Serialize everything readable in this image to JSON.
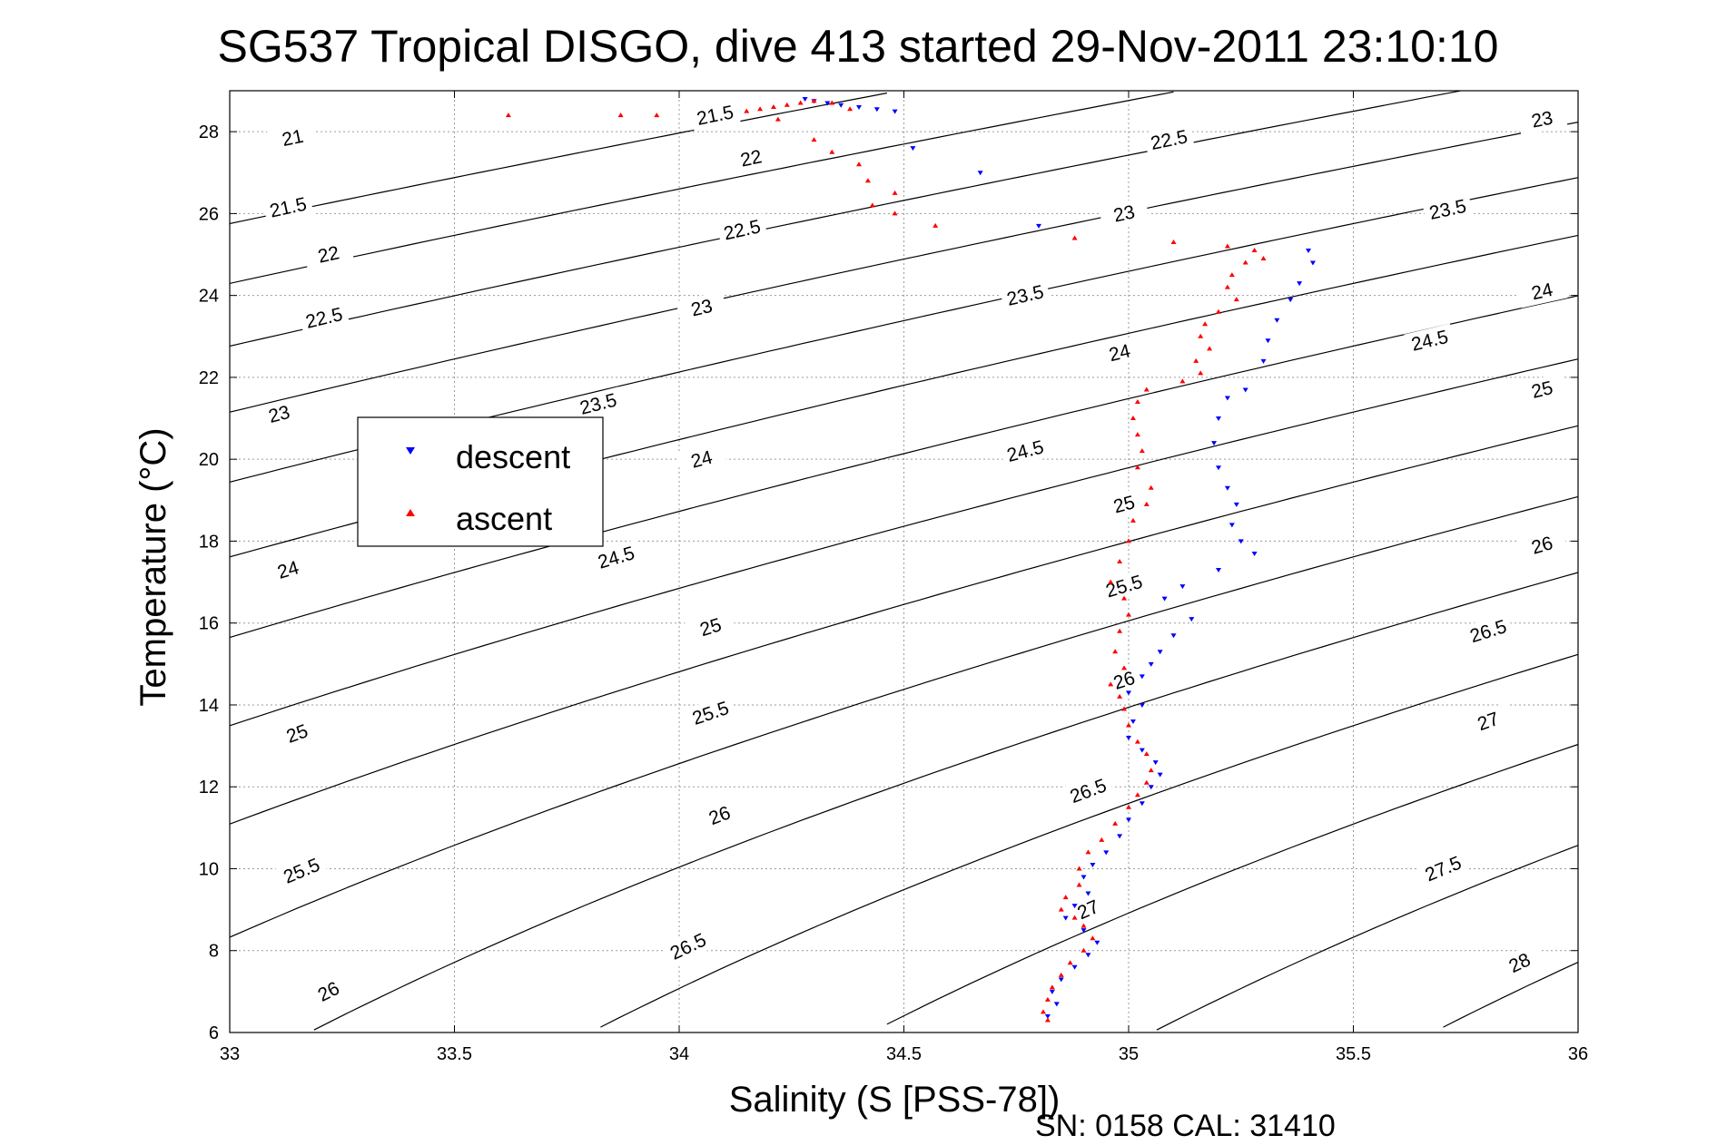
{
  "chart_data": {
    "type": "scatter",
    "title": "SG537 Tropical DISGO, dive 413 started 29-Nov-2011 23:10:10",
    "xlabel": "Salinity (S [PSS-78])",
    "ylabel": "Temperature (°C)",
    "footer": "SN: 0158  CAL: 31410",
    "xlim": [
      33,
      36
    ],
    "ylim": [
      6,
      29
    ],
    "x_ticks": [
      "33",
      "33.5",
      "34",
      "34.5",
      "35",
      "35.5",
      "36"
    ],
    "y_ticks": [
      "6",
      "8",
      "10",
      "12",
      "14",
      "16",
      "18",
      "20",
      "22",
      "24",
      "26",
      "28"
    ],
    "grid": true,
    "legend_position": "center-left",
    "series": [
      {
        "name": "descent",
        "color": "#0000ff",
        "marker": "triangle-down",
        "points": [
          [
            34.28,
            28.8
          ],
          [
            34.3,
            28.75
          ],
          [
            34.33,
            28.7
          ],
          [
            34.36,
            28.65
          ],
          [
            34.4,
            28.6
          ],
          [
            34.44,
            28.55
          ],
          [
            34.48,
            28.5
          ],
          [
            34.52,
            27.6
          ],
          [
            34.67,
            27.0
          ],
          [
            34.8,
            25.7
          ],
          [
            35.4,
            25.1
          ],
          [
            35.41,
            24.8
          ],
          [
            35.38,
            24.3
          ],
          [
            35.36,
            23.9
          ],
          [
            35.33,
            23.4
          ],
          [
            35.31,
            22.9
          ],
          [
            35.3,
            22.4
          ],
          [
            35.26,
            21.7
          ],
          [
            35.22,
            21.5
          ],
          [
            35.2,
            21.0
          ],
          [
            35.19,
            20.4
          ],
          [
            35.2,
            19.8
          ],
          [
            35.22,
            19.3
          ],
          [
            35.24,
            18.9
          ],
          [
            35.23,
            18.4
          ],
          [
            35.25,
            18.0
          ],
          [
            35.28,
            17.7
          ],
          [
            35.2,
            17.3
          ],
          [
            35.12,
            16.9
          ],
          [
            35.08,
            16.6
          ],
          [
            35.14,
            16.1
          ],
          [
            35.1,
            15.7
          ],
          [
            35.07,
            15.3
          ],
          [
            35.05,
            15.0
          ],
          [
            35.03,
            14.7
          ],
          [
            35.0,
            14.3
          ],
          [
            35.03,
            14.0
          ],
          [
            35.01,
            13.6
          ],
          [
            35.0,
            13.2
          ],
          [
            35.03,
            12.9
          ],
          [
            35.06,
            12.6
          ],
          [
            35.07,
            12.3
          ],
          [
            35.05,
            12.0
          ],
          [
            35.03,
            11.6
          ],
          [
            35.0,
            11.2
          ],
          [
            34.98,
            10.8
          ],
          [
            34.95,
            10.4
          ],
          [
            34.92,
            10.1
          ],
          [
            34.9,
            9.8
          ],
          [
            34.91,
            9.4
          ],
          [
            34.88,
            9.1
          ],
          [
            34.86,
            8.8
          ],
          [
            34.9,
            8.5
          ],
          [
            34.93,
            8.2
          ],
          [
            34.91,
            7.9
          ],
          [
            34.88,
            7.6
          ],
          [
            34.85,
            7.3
          ],
          [
            34.83,
            7.0
          ],
          [
            34.84,
            6.7
          ],
          [
            34.82,
            6.4
          ]
        ]
      },
      {
        "name": "ascent",
        "color": "#ff0000",
        "marker": "triangle-up",
        "points": [
          [
            34.15,
            28.5
          ],
          [
            34.18,
            28.55
          ],
          [
            34.21,
            28.6
          ],
          [
            34.24,
            28.65
          ],
          [
            34.27,
            28.7
          ],
          [
            34.3,
            28.75
          ],
          [
            34.34,
            28.7
          ],
          [
            34.38,
            28.55
          ],
          [
            34.22,
            28.3
          ],
          [
            34.3,
            27.8
          ],
          [
            34.34,
            27.5
          ],
          [
            34.4,
            27.2
          ],
          [
            34.42,
            26.8
          ],
          [
            34.48,
            26.5
          ],
          [
            34.43,
            26.2
          ],
          [
            34.48,
            26.0
          ],
          [
            34.57,
            25.7
          ],
          [
            34.88,
            25.4
          ],
          [
            35.1,
            25.3
          ],
          [
            33.62,
            28.4
          ],
          [
            33.87,
            28.4
          ],
          [
            33.95,
            28.4
          ],
          [
            35.22,
            25.2
          ],
          [
            35.28,
            25.1
          ],
          [
            35.3,
            24.9
          ],
          [
            35.26,
            24.8
          ],
          [
            35.23,
            24.5
          ],
          [
            35.22,
            24.2
          ],
          [
            35.24,
            23.9
          ],
          [
            35.2,
            23.6
          ],
          [
            35.17,
            23.3
          ],
          [
            35.16,
            23.0
          ],
          [
            35.18,
            22.7
          ],
          [
            35.15,
            22.4
          ],
          [
            35.16,
            22.1
          ],
          [
            35.12,
            21.9
          ],
          [
            35.04,
            21.7
          ],
          [
            35.02,
            21.4
          ],
          [
            35.01,
            21.0
          ],
          [
            35.02,
            20.6
          ],
          [
            35.03,
            20.2
          ],
          [
            35.02,
            19.8
          ],
          [
            35.05,
            19.3
          ],
          [
            35.04,
            18.9
          ],
          [
            35.01,
            18.5
          ],
          [
            35.0,
            18.0
          ],
          [
            34.98,
            17.5
          ],
          [
            34.96,
            17.0
          ],
          [
            34.99,
            16.6
          ],
          [
            35.0,
            16.2
          ],
          [
            34.98,
            15.8
          ],
          [
            34.97,
            15.3
          ],
          [
            34.99,
            14.9
          ],
          [
            34.96,
            14.5
          ],
          [
            34.98,
            14.2
          ],
          [
            34.99,
            13.9
          ],
          [
            35.0,
            13.5
          ],
          [
            35.02,
            13.1
          ],
          [
            35.04,
            12.8
          ],
          [
            35.05,
            12.4
          ],
          [
            35.04,
            12.1
          ],
          [
            35.02,
            11.8
          ],
          [
            35.0,
            11.5
          ],
          [
            34.97,
            11.1
          ],
          [
            34.94,
            10.7
          ],
          [
            34.91,
            10.4
          ],
          [
            34.89,
            10.0
          ],
          [
            34.89,
            9.6
          ],
          [
            34.86,
            9.3
          ],
          [
            34.85,
            9.0
          ],
          [
            34.88,
            8.8
          ],
          [
            34.9,
            8.6
          ],
          [
            34.92,
            8.3
          ],
          [
            34.9,
            8.0
          ],
          [
            34.87,
            7.7
          ],
          [
            34.85,
            7.4
          ],
          [
            34.83,
            7.1
          ],
          [
            34.82,
            6.8
          ],
          [
            34.81,
            6.5
          ],
          [
            34.82,
            6.3
          ]
        ]
      }
    ],
    "density_contours": {
      "levels": [
        21,
        21.5,
        22,
        22.5,
        23,
        23.5,
        24,
        24.5,
        25,
        25.5,
        26,
        26.5,
        27,
        27.5,
        28
      ],
      "labels": [
        {
          "text": "21",
          "s": 33.14,
          "t": 27.85
        },
        {
          "text": "21.5",
          "s": 33.13,
          "t": 26.15
        },
        {
          "text": "22",
          "s": 33.22,
          "t": 25.0
        },
        {
          "text": "22.5",
          "s": 33.21,
          "t": 23.45
        },
        {
          "text": "23",
          "s": 33.11,
          "t": 21.1
        },
        {
          "text": "24",
          "s": 33.13,
          "t": 17.3
        },
        {
          "text": "25",
          "s": 33.15,
          "t": 13.3
        },
        {
          "text": "25.5",
          "s": 33.16,
          "t": 9.95
        },
        {
          "text": "26",
          "s": 33.22,
          "t": 7.0
        },
        {
          "text": "21.5",
          "s": 34.08,
          "t": 28.4
        },
        {
          "text": "22",
          "s": 34.16,
          "t": 27.35
        },
        {
          "text": "22.5",
          "s": 34.14,
          "t": 25.6
        },
        {
          "text": "23",
          "s": 34.05,
          "t": 23.7
        },
        {
          "text": "23.5",
          "s": 33.82,
          "t": 21.35
        },
        {
          "text": "24",
          "s": 34.05,
          "t": 20.0
        },
        {
          "text": "24.5",
          "s": 33.86,
          "t": 17.6
        },
        {
          "text": "25",
          "s": 34.07,
          "t": 15.9
        },
        {
          "text": "25.5",
          "s": 34.07,
          "t": 13.8
        },
        {
          "text": "26",
          "s": 34.09,
          "t": 11.3
        },
        {
          "text": "26.5",
          "s": 34.02,
          "t": 8.1
        },
        {
          "text": "22.5",
          "s": 35.09,
          "t": 27.8
        },
        {
          "text": "23",
          "s": 34.99,
          "t": 26.0
        },
        {
          "text": "23.5",
          "s": 34.77,
          "t": 24.0
        },
        {
          "text": "24",
          "s": 34.98,
          "t": 22.6
        },
        {
          "text": "24.5",
          "s": 34.77,
          "t": 20.2
        },
        {
          "text": "25",
          "s": 34.99,
          "t": 18.9
        },
        {
          "text": "25.5",
          "s": 34.99,
          "t": 16.9
        },
        {
          "text": "26",
          "s": 34.99,
          "t": 14.6
        },
        {
          "text": "26.5",
          "s": 34.91,
          "t": 11.9
        },
        {
          "text": "27",
          "s": 34.91,
          "t": 9.0
        },
        {
          "text": "23",
          "s": 35.92,
          "t": 28.3
        },
        {
          "text": "23.5",
          "s": 35.71,
          "t": 26.1
        },
        {
          "text": "24",
          "s": 35.92,
          "t": 24.1
        },
        {
          "text": "24.5",
          "s": 35.67,
          "t": 22.9
        },
        {
          "text": "25",
          "s": 35.92,
          "t": 21.7
        },
        {
          "text": "26",
          "s": 35.92,
          "t": 17.9
        },
        {
          "text": "26.5",
          "s": 35.8,
          "t": 15.8
        },
        {
          "text": "27",
          "s": 35.8,
          "t": 13.6
        },
        {
          "text": "27.5",
          "s": 35.7,
          "t": 10.0
        },
        {
          "text": "28",
          "s": 35.87,
          "t": 7.7
        }
      ]
    }
  }
}
